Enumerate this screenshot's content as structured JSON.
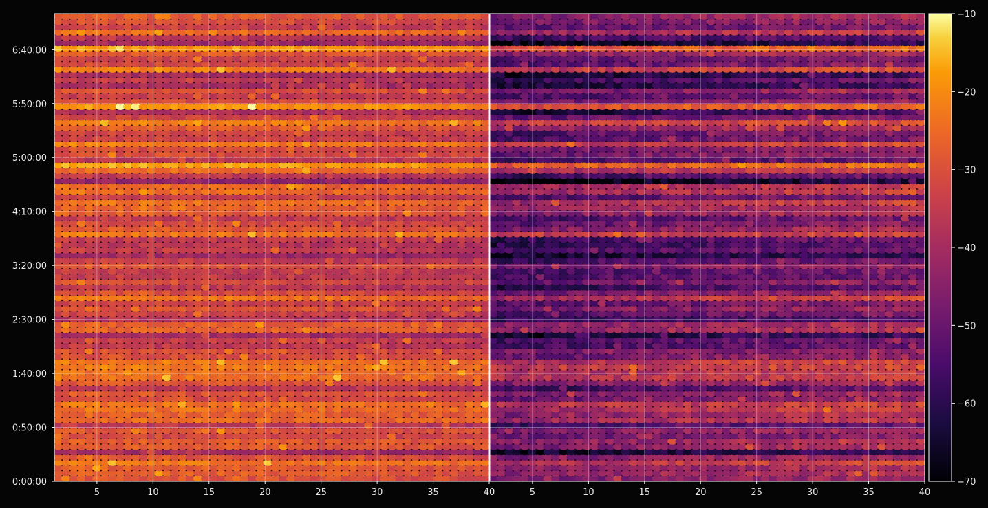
{
  "chart_data": {
    "type": "heatmap",
    "title": "",
    "panels": [
      {
        "name": "",
        "x": {
          "ticks": [
            5,
            10,
            15,
            20,
            25,
            30,
            35,
            40
          ],
          "range": [
            1.2,
            40
          ]
        },
        "variant": "bright"
      },
      {
        "name": "",
        "x": {
          "ticks": [
            5,
            10,
            15,
            20,
            25,
            30,
            35,
            40
          ],
          "range": [
            1.2,
            40
          ]
        },
        "variant": "dark"
      }
    ],
    "y": {
      "ticks": [
        "0:00:00",
        "0:50:00",
        "1:40:00",
        "2:30:00",
        "3:20:00",
        "4:10:00",
        "5:00:00",
        "5:50:00",
        "6:40:00"
      ],
      "tick_seconds": [
        0,
        3000,
        6000,
        9000,
        12000,
        15000,
        18000,
        21000,
        24000
      ],
      "range_seconds": [
        0,
        26000
      ]
    },
    "colorbar": {
      "ticks": [
        "−70",
        "−60",
        "−50",
        "−40",
        "−30",
        "−20",
        "−10"
      ],
      "tick_values": [
        -70,
        -60,
        -50,
        -40,
        -30,
        -20,
        -10
      ],
      "range": [
        -70,
        -10
      ],
      "colormap": "inferno"
    },
    "grid": true,
    "background": "#050505",
    "axis_color": "#ffffff",
    "text_color": "#e8e8e8",
    "values_summary": {
      "bright_panel_range": [
        -45,
        -18
      ],
      "dark_panel_range": [
        -65,
        -25
      ]
    }
  }
}
